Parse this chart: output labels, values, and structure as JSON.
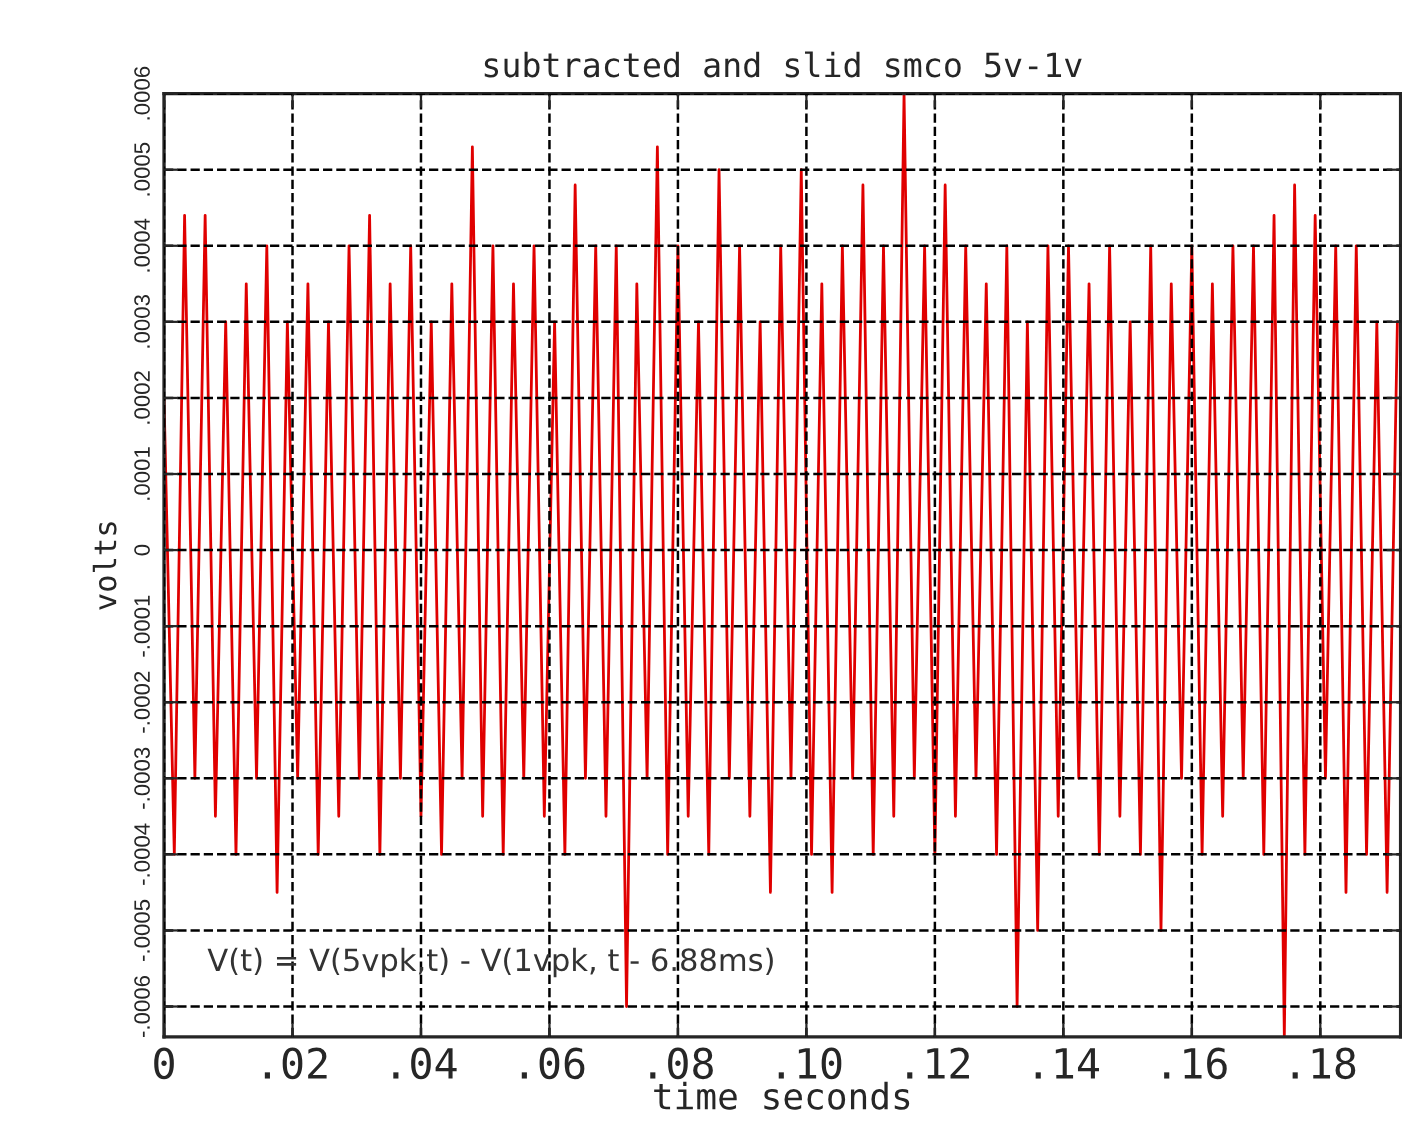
{
  "chart_data": {
    "type": "line",
    "title": "subtracted and slid smco 5v-1v",
    "xlabel": "time seconds",
    "ylabel": "volts",
    "annotations": [
      "V(t) = V(5vpk,t) - V(1vpk, t - 6.88ms)"
    ],
    "x": [
      0,
      0.0016,
      0.0032,
      0.0048,
      0.0064,
      0.008,
      0.0096,
      0.0112,
      0.0128,
      0.0144,
      0.016,
      0.0176,
      0.0192,
      0.0208,
      0.0224,
      0.024,
      0.0256,
      0.0272,
      0.0288,
      0.0304,
      0.032,
      0.0336,
      0.0352,
      0.0368,
      0.0384,
      0.04,
      0.0416,
      0.0432,
      0.0448,
      0.0464,
      0.048,
      0.0496,
      0.0512,
      0.0528,
      0.0544,
      0.056,
      0.0576,
      0.0592,
      0.0608,
      0.0624,
      0.064,
      0.0656,
      0.0672,
      0.0688,
      0.0704,
      0.072,
      0.0736,
      0.0752,
      0.0768,
      0.0784,
      0.08,
      0.0816,
      0.0832,
      0.0848,
      0.0864,
      0.088,
      0.0896,
      0.0912,
      0.0928,
      0.0944,
      0.096,
      0.0976,
      0.0992,
      0.1008,
      0.1024,
      0.104,
      0.1056,
      0.1072,
      0.1088,
      0.1104,
      0.112,
      0.1136,
      0.1152,
      0.1168,
      0.1184,
      0.12,
      0.1216,
      0.1232,
      0.1248,
      0.1264,
      0.128,
      0.1296,
      0.1312,
      0.1328,
      0.1344,
      0.136,
      0.1376,
      0.1392,
      0.1408,
      0.1424,
      0.144,
      0.1456,
      0.1472,
      0.1488,
      0.1504,
      0.152,
      0.1536,
      0.1552,
      0.1568,
      0.1584,
      0.16,
      0.1616,
      0.1632,
      0.1648,
      0.1664,
      0.168,
      0.1696,
      0.1712,
      0.1728,
      0.1744,
      0.176,
      0.1776,
      0.1792,
      0.1808,
      0.1824,
      0.184,
      0.1856,
      0.1872,
      0.1888,
      0.1904,
      0.192
    ],
    "series": [
      {
        "color": "#e00000",
        "values": [
          0.0002,
          -0.0004,
          0.00044,
          -0.0003,
          0.00044,
          -0.00035,
          0.0003,
          -0.0004,
          0.00035,
          -0.0003,
          0.0004,
          -0.00045,
          0.0003,
          -0.0003,
          0.00035,
          -0.0004,
          0.0003,
          -0.00035,
          0.0004,
          -0.0003,
          0.00044,
          -0.0004,
          0.00035,
          -0.0003,
          0.0004,
          -0.00035,
          0.0003,
          -0.0004,
          0.00035,
          -0.0003,
          0.00053,
          -0.00035,
          0.0004,
          -0.0004,
          0.00035,
          -0.0003,
          0.0004,
          -0.00035,
          0.0003,
          -0.0004,
          0.00048,
          -0.0003,
          0.0004,
          -0.00035,
          0.0004,
          -0.0006,
          0.00035,
          -0.0003,
          0.00053,
          -0.0004,
          0.0004,
          -0.00035,
          0.0003,
          -0.0004,
          0.0005,
          -0.0003,
          0.0004,
          -0.00035,
          0.0003,
          -0.00045,
          0.0004,
          -0.0003,
          0.0005,
          -0.0004,
          0.00035,
          -0.00045,
          0.0004,
          -0.0003,
          0.00048,
          -0.0004,
          0.0004,
          -0.00035,
          0.0006,
          -0.0003,
          0.0004,
          -0.0004,
          0.00048,
          -0.00035,
          0.0004,
          -0.0003,
          0.00035,
          -0.0004,
          0.0004,
          -0.0006,
          0.0003,
          -0.0005,
          0.0004,
          -0.00035,
          0.0004,
          -0.0003,
          0.00035,
          -0.0004,
          0.0004,
          -0.00035,
          0.0003,
          -0.0004,
          0.0004,
          -0.0005,
          0.00035,
          -0.0003,
          0.0004,
          -0.0004,
          0.00035,
          -0.00035,
          0.0004,
          -0.0003,
          0.0004,
          -0.0004,
          0.00044,
          -0.00064,
          0.00048,
          -0.0004,
          0.00044,
          -0.0003,
          0.0004,
          -0.00045,
          0.0004,
          -0.0004,
          0.0003,
          -0.00045,
          0.0003
        ]
      }
    ],
    "xlim": [
      0,
      0.1925
    ],
    "ylim": [
      -0.00064,
      0.0006
    ],
    "xticks": [
      0,
      {
        "value": 0.02,
        "label": ".02"
      },
      {
        "value": 0.04,
        "label": ".04"
      },
      {
        "value": 0.06,
        "label": ".06"
      },
      {
        "value": 0.08,
        "label": ".08"
      },
      {
        "value": 0.1,
        "label": ".10"
      },
      {
        "value": 0.12,
        "label": ".12"
      },
      {
        "value": 0.14,
        "label": ".14"
      },
      {
        "value": 0.16,
        "label": ".16"
      },
      {
        "value": 0.18,
        "label": ".18"
      }
    ],
    "yticks": [
      {
        "value": -0.0006,
        "label": "-.0006"
      },
      {
        "value": -0.0005,
        "label": "-.0005"
      },
      {
        "value": -0.0004,
        "label": "-.0004"
      },
      {
        "value": -0.0003,
        "label": "-.0003"
      },
      {
        "value": -0.0002,
        "label": "-.0002"
      },
      {
        "value": -0.0001,
        "label": "-.0001"
      },
      0,
      {
        "value": 0.0001,
        "label": ".0001"
      },
      {
        "value": 0.0002,
        "label": ".0002"
      },
      {
        "value": 0.0003,
        "label": ".0003"
      },
      {
        "value": 0.0004,
        "label": ".0004"
      },
      {
        "value": 0.0005,
        "label": ".0005"
      },
      {
        "value": 0.0006,
        "label": ".0006"
      }
    ],
    "grid": true,
    "line_style": "solid"
  }
}
